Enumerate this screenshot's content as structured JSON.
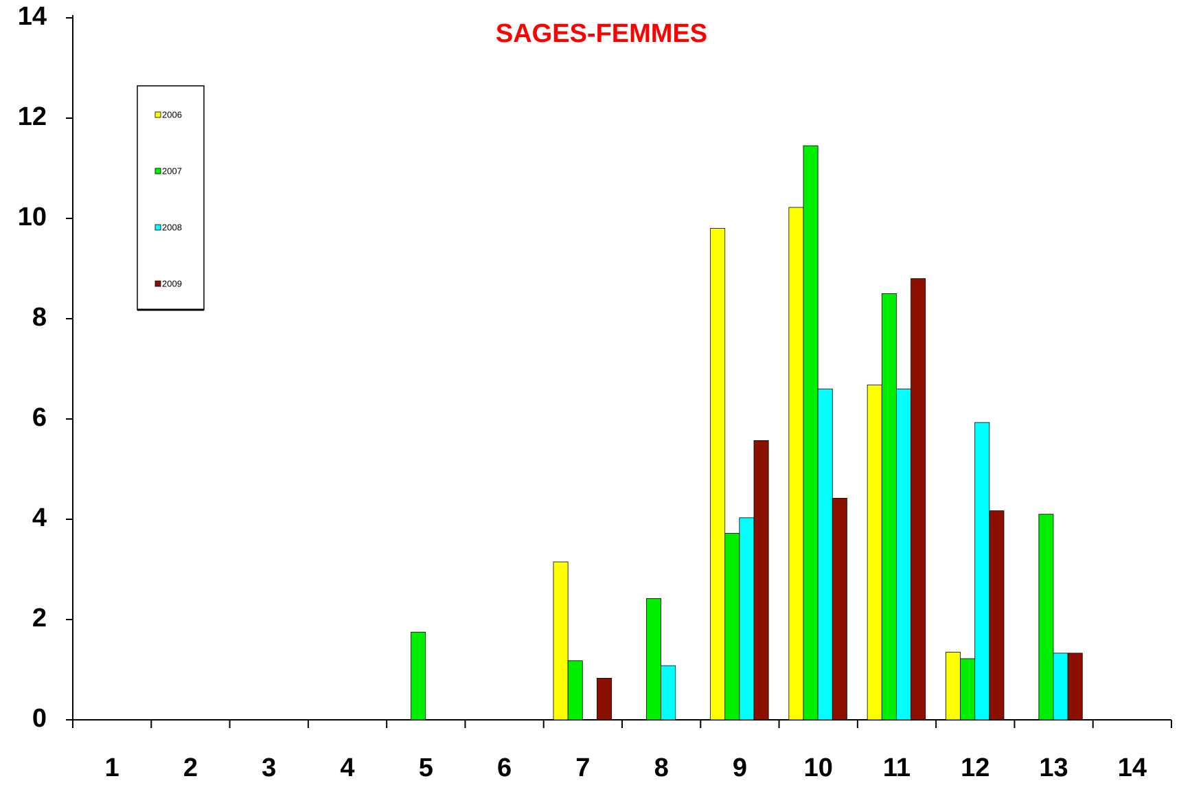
{
  "chart_data": {
    "type": "bar",
    "title": "SAGES-FEMMES",
    "categories": [
      "1",
      "2",
      "3",
      "4",
      "5",
      "6",
      "7",
      "8",
      "9",
      "10",
      "11",
      "12",
      "13",
      "14"
    ],
    "series": [
      {
        "name": "2006",
        "color": "#ffff00",
        "values": [
          0,
          0,
          0,
          0,
          0,
          0,
          3.15,
          0,
          9.8,
          10.22,
          6.68,
          1.35,
          0,
          0
        ]
      },
      {
        "name": "2007",
        "color": "#00ee00",
        "values": [
          0,
          0,
          0,
          0,
          1.75,
          0,
          1.18,
          2.42,
          3.72,
          11.45,
          8.5,
          1.22,
          4.1,
          0
        ]
      },
      {
        "name": "2008",
        "color": "#00ffff",
        "values": [
          0,
          0,
          0,
          0,
          0,
          0,
          0,
          1.08,
          4.03,
          6.6,
          6.6,
          5.93,
          1.33,
          0
        ]
      },
      {
        "name": "2009",
        "color": "#8b1000",
        "values": [
          0,
          0,
          0,
          0,
          0,
          0,
          0.83,
          0,
          5.57,
          4.42,
          8.8,
          4.17,
          1.33,
          0
        ]
      }
    ],
    "ylim": [
      0,
      14
    ],
    "yticks": [
      0,
      2,
      4,
      6,
      8,
      10,
      12,
      14
    ],
    "grid": false,
    "legend": "upper left"
  }
}
